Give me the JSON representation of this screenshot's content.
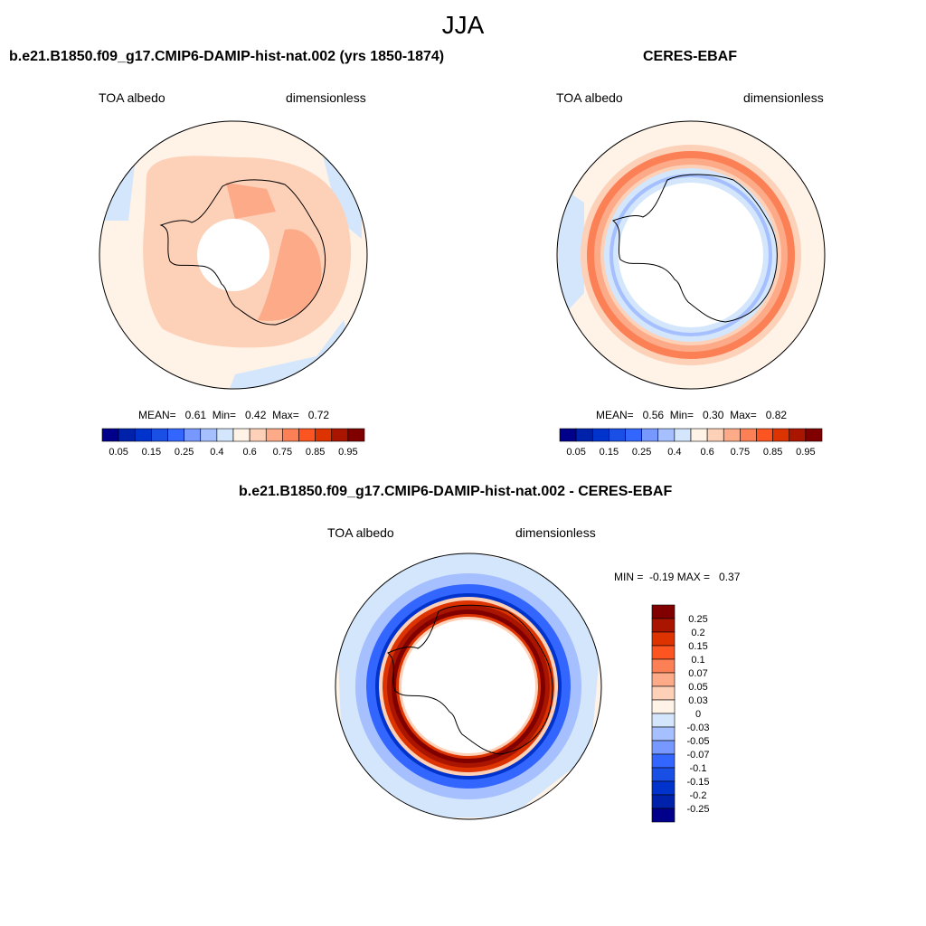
{
  "figure": {
    "season": "JJA"
  },
  "panels": {
    "model": {
      "title": "b.e21.B1850.f09_g17.CMIP6-DAMIP-hist-nat.002 (yrs 1850-1874)",
      "left_label": "TOA albedo",
      "right_label": "dimensionless",
      "stats": "MEAN=   0.61  Min=   0.42  Max=   0.72"
    },
    "obs": {
      "title": "CERES-EBAF",
      "left_label": "TOA albedo",
      "right_label": "dimensionless",
      "stats": "MEAN=   0.56  Min=   0.30  Max=   0.82"
    },
    "diff": {
      "title": "b.e21.B1850.f09_g17.CMIP6-DAMIP-hist-nat.002 - CERES-EBAF",
      "left_label": "TOA albedo",
      "right_label": "dimensionless",
      "stats": "MIN =  -0.19 MAX =   0.37"
    }
  },
  "colorbars": {
    "albedo": {
      "colors": [
        "#00008b",
        "#0022aa",
        "#0033cc",
        "#1a4fe6",
        "#3366ff",
        "#7799ff",
        "#a6bfff",
        "#d3e6fb",
        "#fff2e6",
        "#fdd0b8",
        "#fcaa88",
        "#fc8055",
        "#fc5522",
        "#dd3300",
        "#aa1500",
        "#800000"
      ],
      "labels": [
        "0.05",
        "0.15",
        "0.25",
        "0.4",
        "0.6",
        "0.75",
        "0.85",
        "0.95"
      ]
    },
    "diff": {
      "colors": [
        "#800000",
        "#aa1500",
        "#dd3300",
        "#fc5522",
        "#fc8055",
        "#fcaa88",
        "#fdd0b8",
        "#fff2e6",
        "#d3e6fb",
        "#a6bfff",
        "#7799ff",
        "#3366ff",
        "#1a4fe6",
        "#0033cc",
        "#0022aa",
        "#00008b"
      ],
      "labels": [
        "0.25",
        "0.2",
        "0.15",
        "0.1",
        "0.07",
        "0.05",
        "0.03",
        "0",
        "-0.03",
        "-0.05",
        "-0.07",
        "-0.1",
        "-0.15",
        "-0.2",
        "-0.25"
      ]
    }
  }
}
